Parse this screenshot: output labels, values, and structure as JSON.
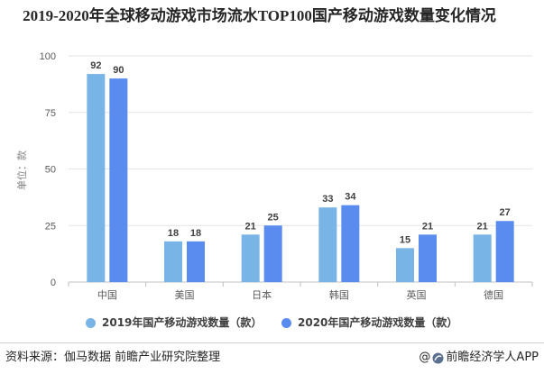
{
  "chart_data": {
    "type": "bar",
    "title": "2019-2020年全球移动游戏市场流水TOP100国产移动游戏数量变化情况",
    "ylabel": "单位：款",
    "ylim": [
      0,
      100
    ],
    "yticks": [
      0,
      25,
      50,
      75,
      100
    ],
    "grid": true,
    "legend": "bottom",
    "categories": [
      "中国",
      "美国",
      "日本",
      "韩国",
      "英国",
      "德国"
    ],
    "series": [
      {
        "name": "2019年国产移动游戏数量（款）",
        "values": [
          92,
          18,
          21,
          33,
          15,
          21
        ],
        "color": "#78b4e6"
      },
      {
        "name": "2020年国产移动游戏数量（款）",
        "values": [
          90,
          18,
          25,
          34,
          21,
          27
        ],
        "color": "#5a8cf0"
      }
    ]
  },
  "footer": {
    "source": "资料来源：伽马数据 前瞻产业研究院整理",
    "brand_prefix": "@",
    "brand": "前瞻经济学人APP",
    "brand_icon": "qianzhan-logo-icon"
  }
}
